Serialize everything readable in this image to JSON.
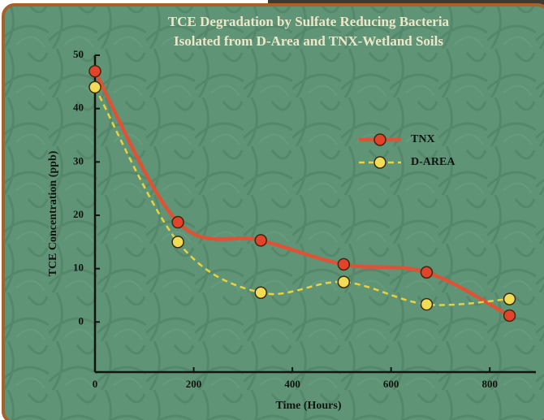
{
  "chart_data": {
    "type": "line",
    "title": "TCE Degradation by Sulfate Reducing Bacteria",
    "subtitle": "Isolated from D-Area and TNX-Wetland Soils",
    "x_label": "Time (Hours)",
    "y_label": "TCE Concentration (ppb)",
    "x": [
      0,
      168,
      336,
      504,
      672,
      840
    ],
    "series": [
      {
        "name": "TNX",
        "color": "#de5236",
        "marker_color": "#e2432a",
        "dashed": false,
        "values": [
          47,
          18.7,
          15.3,
          10.8,
          9.3,
          1.2
        ]
      },
      {
        "name": "D-AREA",
        "color": "#e9d23c",
        "marker_color": "#f0dc55",
        "dashed": true,
        "values": [
          44,
          15,
          5.5,
          7.5,
          3.3,
          4.3
        ]
      }
    ],
    "xlim": [
      0,
      900
    ],
    "ylim": [
      -10,
      50
    ],
    "xticks": [
      0,
      200,
      400,
      600,
      800
    ],
    "yticks": [
      0,
      10,
      20,
      30,
      40,
      50
    ],
    "smooth": true,
    "legend": "upper-right"
  }
}
